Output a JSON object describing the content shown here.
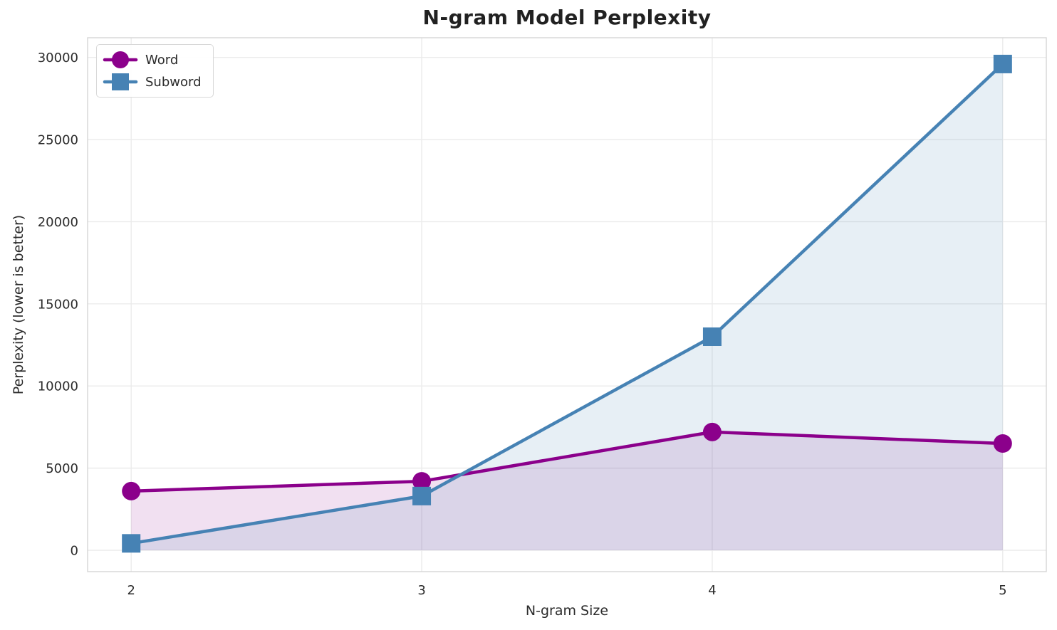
{
  "figure": {
    "title": "N-gram Model Perplexity",
    "xlabel": "N-gram Size",
    "ylabel": "Perplexity (lower is better)"
  },
  "chart_data": {
    "type": "line",
    "title": "N-gram Model Perplexity",
    "xlabel": "N-gram Size",
    "ylabel": "Perplexity (lower is better)",
    "x": [
      2,
      3,
      4,
      5
    ],
    "series": [
      {
        "name": "Word",
        "values": [
          3600,
          4200,
          7200,
          6500
        ],
        "color": "#8B008B",
        "marker": "circle",
        "fill_alpha": 0.12
      },
      {
        "name": "Subword",
        "values": [
          420,
          3300,
          13000,
          29600
        ],
        "color": "#4682B4",
        "marker": "square",
        "fill_alpha": 0.13
      }
    ],
    "area_fill_baseline": 0,
    "xlim": [
      1.85,
      5.15
    ],
    "ylim": [
      -1300,
      31200
    ],
    "xticks": [
      2,
      3,
      4,
      5
    ],
    "yticks": [
      0,
      5000,
      10000,
      15000,
      20000,
      25000,
      30000
    ],
    "grid": true,
    "legend_position": "upper left"
  },
  "colors": {
    "grid": "#ebebeb",
    "spine": "#d5d5d5",
    "tick_text": "#2b2b2b",
    "background": "#ffffff"
  }
}
